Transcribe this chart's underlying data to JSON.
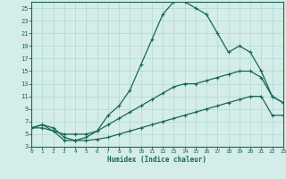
{
  "xlabel": "Humidex (Indice chaleur)",
  "bg_color": "#d4ede8",
  "grid_color": "#b0d8d2",
  "line_color": "#1a6655",
  "xlim": [
    0,
    23
  ],
  "ylim": [
    3,
    26
  ],
  "xticks": [
    0,
    1,
    2,
    3,
    4,
    5,
    6,
    7,
    8,
    9,
    10,
    11,
    12,
    13,
    14,
    15,
    16,
    17,
    18,
    19,
    20,
    21,
    22,
    23
  ],
  "yticks": [
    3,
    5,
    7,
    9,
    11,
    13,
    15,
    17,
    19,
    21,
    23,
    25
  ],
  "line1_x": [
    0,
    1,
    2,
    3,
    4,
    5,
    6,
    7,
    8,
    9,
    10,
    11,
    12,
    13,
    14,
    15,
    16,
    17,
    18,
    19,
    20,
    21,
    22,
    23
  ],
  "line1_y": [
    6,
    6.5,
    6,
    4.5,
    4,
    4.5,
    5.5,
    8,
    9.5,
    12,
    16,
    20,
    24,
    26,
    26,
    25,
    24,
    21,
    18,
    19,
    18,
    15,
    11,
    10
  ],
  "line2_x": [
    0,
    1,
    2,
    3,
    4,
    5,
    6,
    7,
    8,
    9,
    10,
    11,
    12,
    13,
    14,
    15,
    16,
    17,
    18,
    19,
    20,
    21,
    22,
    23
  ],
  "line2_y": [
    6,
    6.5,
    5.5,
    5,
    5,
    5,
    5.5,
    6.5,
    7.5,
    8.5,
    9.5,
    10.5,
    11.5,
    12.5,
    13,
    13,
    13.5,
    14,
    14.5,
    15,
    15,
    14,
    11,
    10
  ],
  "line3_x": [
    0,
    1,
    2,
    3,
    4,
    5,
    6,
    7,
    8,
    9,
    10,
    11,
    12,
    13,
    14,
    15,
    16,
    17,
    18,
    19,
    20,
    21,
    22,
    23
  ],
  "line3_y": [
    6,
    6,
    5.5,
    4,
    4,
    4,
    4.2,
    4.5,
    5,
    5.5,
    6,
    6.5,
    7,
    7.5,
    8,
    8.5,
    9,
    9.5,
    10,
    10.5,
    11,
    11,
    8,
    8
  ]
}
